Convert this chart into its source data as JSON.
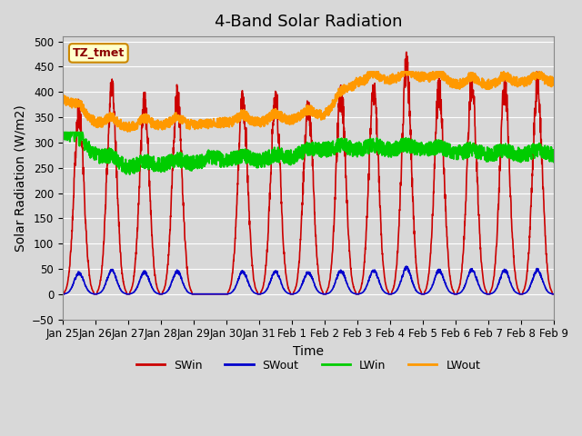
{
  "title": "4-Band Solar Radiation",
  "xlabel": "Time",
  "ylabel": "Solar Radiation (W/m2)",
  "ylim": [
    -50,
    510
  ],
  "yticks": [
    -50,
    0,
    50,
    100,
    150,
    200,
    250,
    300,
    350,
    400,
    450,
    500
  ],
  "legend_label": "TZ_tmet",
  "series_colors": {
    "SWin": "#cc0000",
    "SWout": "#0000cc",
    "LWin": "#00cc00",
    "LWout": "#ff9900"
  },
  "line_widths": {
    "SWin": 1.2,
    "SWout": 1.2,
    "LWin": 1.5,
    "LWout": 1.5
  },
  "plot_bg_color": "#d8d8d8",
  "title_fontsize": 13,
  "axis_label_fontsize": 10,
  "tick_fontsize": 8.5,
  "x_tick_labels": [
    "Jan 25",
    "Jan 26",
    "Jan 27",
    "Jan 28",
    "Jan 29",
    "Jan 30",
    "Jan 31",
    "Feb 1",
    "Feb 2",
    "Feb 3",
    "Feb 4",
    "Feb 5",
    "Feb 6",
    "Feb 7",
    "Feb 8",
    "Feb 9"
  ],
  "n_days": 15,
  "pts_per_day": 144
}
